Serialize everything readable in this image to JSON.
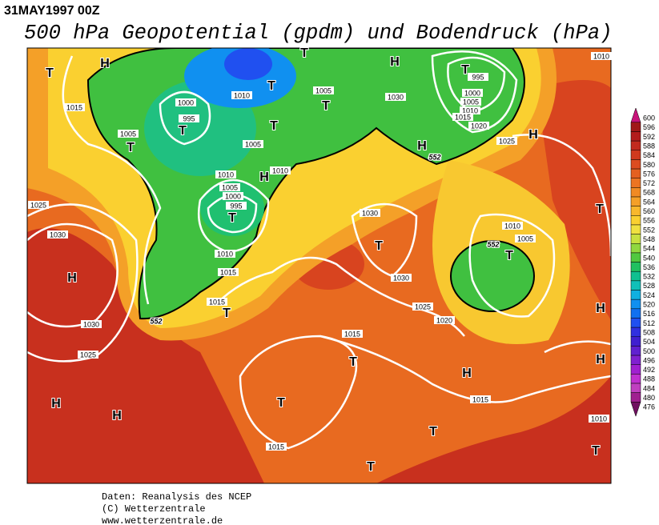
{
  "header": {
    "timestamp": "31MAY1997 00Z",
    "title": "500 hPa Geopotential (gpdm) und Bodendruck (hPa)"
  },
  "colorbar": {
    "levels": [
      600,
      596,
      592,
      588,
      584,
      580,
      576,
      572,
      568,
      564,
      560,
      556,
      552,
      548,
      544,
      540,
      536,
      532,
      528,
      524,
      520,
      516,
      512,
      508,
      504,
      500,
      496,
      492,
      488,
      484,
      480,
      476
    ],
    "colors": [
      "#c8147a",
      "#a01818",
      "#b21c1c",
      "#c22a1e",
      "#d03a1e",
      "#dc4c20",
      "#e46020",
      "#ec7422",
      "#f08a24",
      "#f4a028",
      "#f8b82c",
      "#fad030",
      "#f0e040",
      "#c8e040",
      "#90d840",
      "#50c840",
      "#20c060",
      "#10c090",
      "#10c0b8",
      "#10b0e0",
      "#1090f0",
      "#1070f0",
      "#2050f0",
      "#3030e0",
      "#4020d0",
      "#6020d0",
      "#8020d0",
      "#a020d0",
      "#c030d0",
      "#c040c0",
      "#a02090",
      "#701060"
    ]
  },
  "map_labels": {
    "isobars": [
      "1015",
      "1000",
      "995",
      "1005",
      "1010",
      "1005",
      "1005",
      "1030",
      "995",
      "1000",
      "1005",
      "1010",
      "1015",
      "1020",
      "1025",
      "1010",
      "1010",
      "1010",
      "1005",
      "1000",
      "995",
      "1025",
      "1030",
      "1010",
      "1015",
      "1030",
      "1010",
      "1005",
      "1030",
      "1015",
      "1025",
      "1020",
      "1030",
      "1015",
      "1025",
      "1015",
      "1010",
      "1015"
    ],
    "contours": [
      "552",
      "552",
      "552"
    ],
    "centers": [
      "H",
      "T",
      "T",
      "T",
      "T",
      "T",
      "T",
      "H",
      "T",
      "H",
      "T",
      "H",
      "H",
      "T",
      "H",
      "T",
      "T",
      "T",
      "H",
      "T",
      "H",
      "T",
      "H",
      "H",
      "H",
      "T",
      "T",
      "T",
      "T"
    ]
  },
  "footer": [
    "Daten: Reanalysis des NCEP",
    "(C) Wetterzentrale",
    "www.wetterzentrale.de"
  ]
}
